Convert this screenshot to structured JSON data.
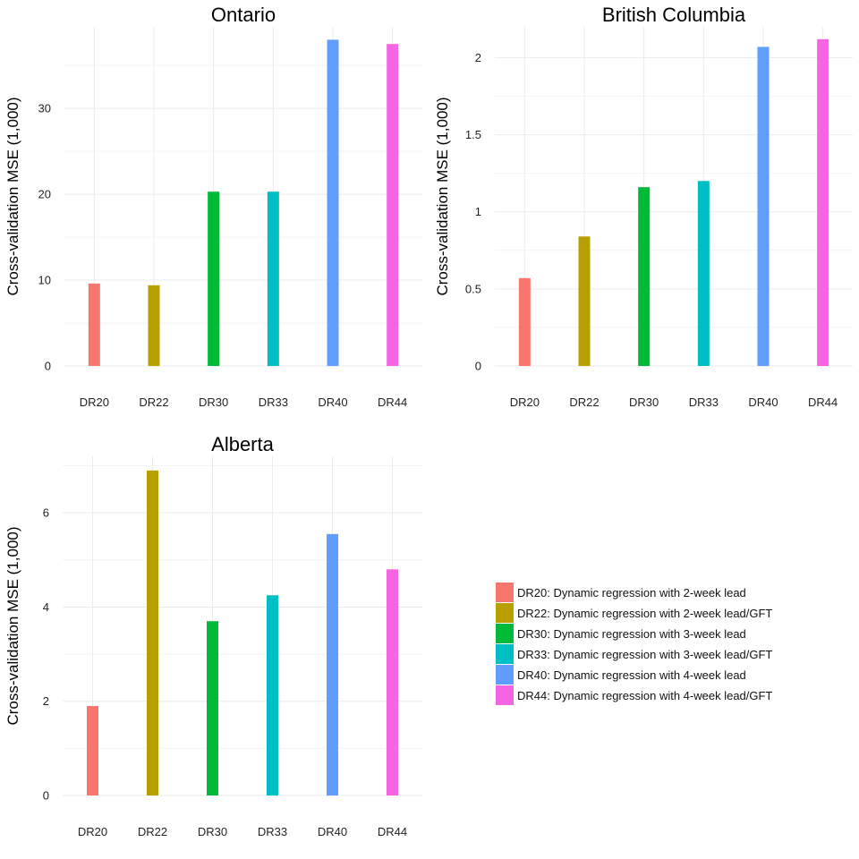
{
  "chart_data": [
    {
      "type": "bar",
      "title": "Ontario",
      "ylabel": "Cross-validation MSE (1,000)",
      "categories": [
        "DR20",
        "DR22",
        "DR30",
        "DR33",
        "DR40",
        "DR44"
      ],
      "values": [
        9.6,
        9.4,
        20.3,
        20.3,
        38.0,
        37.5
      ],
      "ylim": [
        0,
        39.5
      ],
      "yticks": [
        0,
        10,
        20,
        30
      ],
      "ytick_labels": [
        "0",
        "10",
        "20",
        "30"
      ],
      "grid": true
    },
    {
      "type": "bar",
      "title": "British Columbia",
      "ylabel": "Cross-validation MSE (1,000)",
      "categories": [
        "DR20",
        "DR22",
        "DR30",
        "DR33",
        "DR40",
        "DR44"
      ],
      "values": [
        0.57,
        0.84,
        1.16,
        1.2,
        2.07,
        2.12
      ],
      "ylim": [
        0,
        2.2
      ],
      "yticks": [
        0,
        0.5,
        1,
        1.5,
        2
      ],
      "ytick_labels": [
        "0",
        "0.5",
        "1",
        "1.5",
        "2"
      ],
      "grid": true
    },
    {
      "type": "bar",
      "title": "Alberta",
      "ylabel": "Cross-validation MSE (1,000)",
      "categories": [
        "DR20",
        "DR22",
        "DR30",
        "DR33",
        "DR40",
        "DR44"
      ],
      "values": [
        1.9,
        6.9,
        3.7,
        4.25,
        5.55,
        4.8
      ],
      "ylim": [
        0,
        7.2
      ],
      "yticks": [
        0,
        2,
        4,
        6
      ],
      "ytick_labels": [
        "0",
        "2",
        "4",
        "6"
      ],
      "grid": true
    }
  ],
  "legend": {
    "placement": "bottom-right",
    "items": [
      {
        "label": "DR20: Dynamic regression with 2-week lead",
        "color": "#f8766d"
      },
      {
        "label": "DR22: Dynamic regression with 2-week lead/GFT",
        "color": "#b79f00"
      },
      {
        "label": "DR30: Dynamic regression with 3-week lead",
        "color": "#00ba38"
      },
      {
        "label": "DR33: Dynamic regression with 3-week lead/GFT",
        "color": "#00bfc4"
      },
      {
        "label": "DR40: Dynamic regression with 4-week lead",
        "color": "#619cff"
      },
      {
        "label": "DR44: Dynamic regression with 4-week lead/GFT",
        "color": "#f564e3"
      }
    ]
  }
}
